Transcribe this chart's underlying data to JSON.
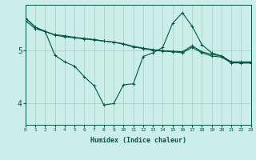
{
  "xlabel": "Humidex (Indice chaleur)",
  "background_color": "#cceee8",
  "grid_color": "#aaccbb",
  "line_color": "#005544",
  "xlim": [
    0,
    23
  ],
  "ylim": [
    3.6,
    5.85
  ],
  "yticks": [
    4,
    5
  ],
  "xtick_labels": [
    "0",
    "1",
    "2",
    "3",
    "4",
    "5",
    "6",
    "7",
    "8",
    "9",
    "10",
    "11",
    "12",
    "13",
    "14",
    "15",
    "16",
    "17",
    "18",
    "19",
    "20",
    "21",
    "22",
    "23"
  ],
  "line1_x": [
    0,
    1,
    2,
    3,
    4,
    5,
    6,
    7,
    8,
    9,
    10,
    11,
    12,
    13,
    14,
    15,
    16,
    17,
    18,
    19,
    20,
    21,
    22,
    23
  ],
  "line1_y": [
    5.55,
    5.4,
    5.35,
    5.28,
    5.25,
    5.23,
    5.21,
    5.19,
    5.17,
    5.15,
    5.12,
    5.07,
    5.04,
    5.01,
    4.99,
    4.98,
    4.97,
    5.08,
    4.97,
    4.92,
    4.89,
    4.78,
    4.78,
    4.78
  ],
  "line2_x": [
    0,
    1,
    2,
    3,
    4,
    5,
    6,
    7,
    8,
    9,
    10,
    11,
    12,
    13,
    14,
    15,
    16,
    17,
    18,
    19,
    20,
    21,
    22,
    23
  ],
  "line2_y": [
    5.6,
    5.43,
    5.35,
    5.29,
    5.27,
    5.24,
    5.22,
    5.2,
    5.17,
    5.15,
    5.11,
    5.06,
    5.03,
    5.0,
    4.98,
    4.97,
    4.95,
    5.05,
    4.95,
    4.89,
    4.87,
    4.76,
    4.76,
    4.76
  ],
  "line3_x": [
    0,
    1,
    2,
    3,
    4,
    5,
    6,
    7,
    8,
    9,
    10,
    11,
    12,
    13,
    14,
    15,
    16,
    17,
    18,
    19,
    20,
    21,
    22,
    23
  ],
  "line3_y": [
    5.6,
    5.43,
    5.35,
    4.9,
    4.78,
    4.7,
    4.5,
    4.33,
    3.97,
    4.0,
    4.35,
    4.37,
    4.88,
    4.95,
    5.05,
    5.5,
    5.7,
    5.45,
    5.1,
    4.95,
    4.89,
    4.78,
    4.76,
    4.76
  ]
}
